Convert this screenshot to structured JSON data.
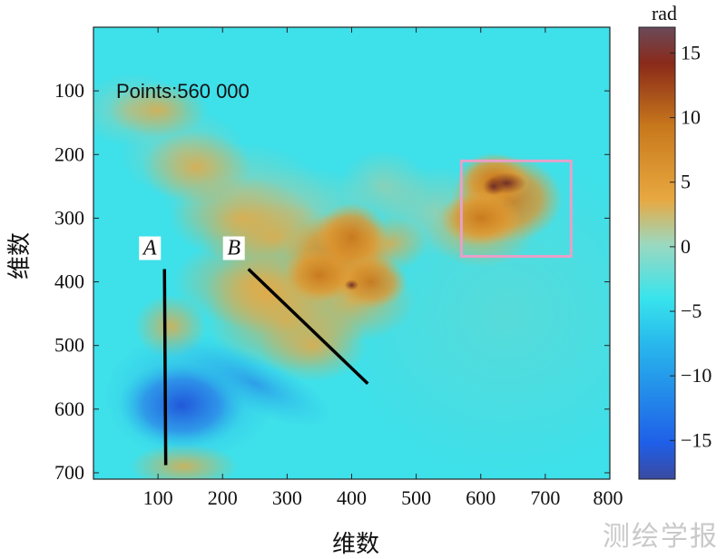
{
  "chart_data": {
    "type": "heatmap",
    "annotation": "Points:560 000",
    "xlabel": "维数",
    "ylabel": "维数",
    "xlim": [
      0,
      800
    ],
    "ylim": [
      710,
      0
    ],
    "xticks": [
      100,
      200,
      300,
      400,
      500,
      600,
      700,
      800
    ],
    "yticks": [
      100,
      200,
      300,
      400,
      500,
      600,
      700
    ],
    "colorbar": {
      "unit": "rad",
      "range": [
        -18,
        17
      ],
      "ticks": [
        15,
        10,
        5,
        0,
        -5,
        -10,
        -15
      ],
      "colors": [
        "#3a4aa0",
        "#1f5fe8",
        "#28b8ec",
        "#38e4ec",
        "#9cd8c0",
        "#e8a840",
        "#c8781c",
        "#8a2a1a",
        "#6a4a5a"
      ]
    },
    "background_value": -5,
    "regions": [
      {
        "name": "uplift-east",
        "center": [
          640,
          270
        ],
        "peak_value": 14,
        "color": "#c8781c"
      },
      {
        "name": "uplift-central",
        "center": [
          380,
          360
        ],
        "peak_value": 10,
        "color": "#c8781c"
      },
      {
        "name": "uplift-west",
        "center": [
          270,
          420
        ],
        "peak_value": 4,
        "color": "#e8a840"
      },
      {
        "name": "subsidence-southwest",
        "center": [
          150,
          580
        ],
        "peak_value": -13,
        "color": "#1f5fe8"
      }
    ],
    "box": {
      "x": [
        570,
        740
      ],
      "y": [
        210,
        360
      ],
      "color": "#e8a0c8"
    },
    "profiles": [
      {
        "label": "A",
        "start": [
          110,
          380
        ],
        "end": [
          112,
          688
        ]
      },
      {
        "label": "B",
        "start": [
          240,
          380
        ],
        "end": [
          425,
          560
        ]
      }
    ]
  },
  "watermark": "测绘学报"
}
